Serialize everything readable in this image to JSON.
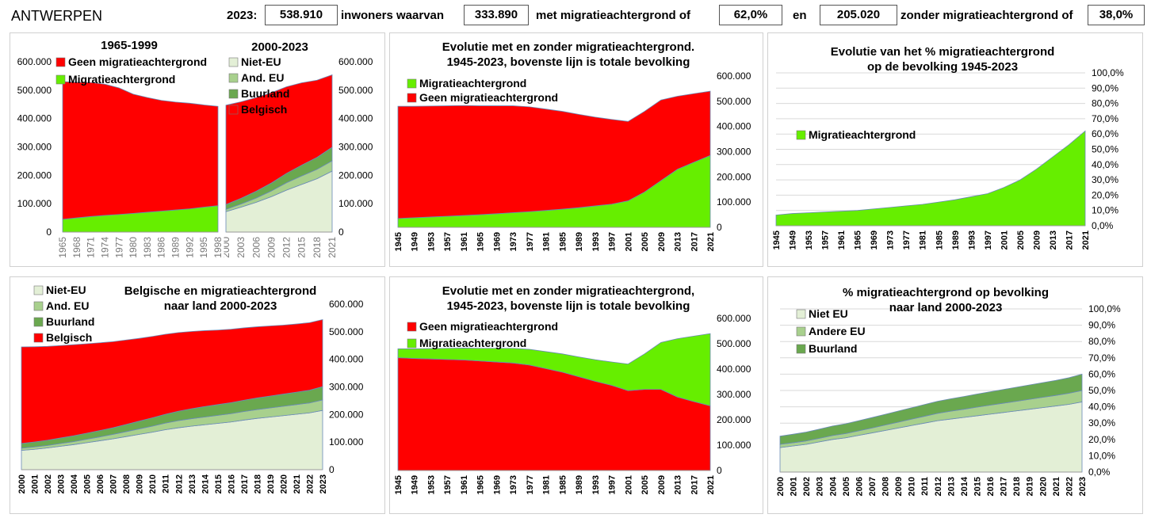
{
  "header": {
    "city": "ANTWERPEN",
    "year_label": "2023:",
    "total": "538.910",
    "inwoners_label": "inwoners  waarvan",
    "with_migration": "333.890",
    "with_label": "met migratieachtergrond of",
    "with_pct": "62,0%",
    "en_label": "en",
    "without_migration": "205.020",
    "without_label": "zonder migratieachtergrond of",
    "without_pct": "38,0%"
  },
  "colors": {
    "red": "#ff0000",
    "green": "#66ee00",
    "niet_eu": "#e3efd6",
    "and_eu": "#a8d08d",
    "buurland": "#6aa84f",
    "belgisch": "#ff0000"
  },
  "chart_data": [
    {
      "id": "c1a",
      "type": "area",
      "title": "1965-1999",
      "x": [
        "1965",
        "1968",
        "1971",
        "1974",
        "1977",
        "1980",
        "1983",
        "1986",
        "1989",
        "1992",
        "1995",
        "1998"
      ],
      "ylim": [
        0,
        600000
      ],
      "yticks": [
        "0",
        "100.000",
        "200.000",
        "300.000",
        "400.000",
        "500.000",
        "600.000"
      ],
      "series": [
        {
          "name": "Migratieachtergrond",
          "values": [
            45000,
            50000,
            55000,
            59000,
            62000,
            66000,
            70000,
            74000,
            78000,
            82000,
            88000,
            93000
          ]
        },
        {
          "name": "Geen migratieachtergrond",
          "values": [
            485000,
            478000,
            472000,
            462000,
            446000,
            420000,
            404000,
            390000,
            380000,
            372000,
            360000,
            350000
          ]
        }
      ]
    },
    {
      "id": "c1b",
      "type": "area",
      "title": "2000-2023",
      "x": [
        "2000",
        "2003",
        "2006",
        "2009",
        "2012",
        "2015",
        "2018",
        "2021"
      ],
      "ylim": [
        0,
        600000
      ],
      "yticks": [
        "0",
        "100.000",
        "200.000",
        "300.000",
        "400.000",
        "500.000",
        "600.000"
      ],
      "series": [
        {
          "name": "Niet-EU",
          "values": [
            72000,
            88000,
            105000,
            125000,
            148000,
            168000,
            188000,
            215000
          ]
        },
        {
          "name": "And. EU",
          "values": [
            8000,
            11000,
            15000,
            20000,
            26000,
            30000,
            33000,
            36000
          ]
        },
        {
          "name": "Buurland",
          "values": [
            17000,
            20000,
            24000,
            28000,
            33000,
            38000,
            42000,
            48000
          ]
        },
        {
          "name": "Belgisch",
          "values": [
            350000,
            340000,
            330000,
            318000,
            305000,
            290000,
            272000,
            255000
          ]
        }
      ]
    },
    {
      "id": "c2",
      "type": "area",
      "title": [
        "Evolutie met en zonder migratieachtergrond.",
        "1945-2023, bovenste lijn is totale  bevolking"
      ],
      "x": [
        "1945",
        "1949",
        "1953",
        "1957",
        "1961",
        "1965",
        "1969",
        "1973",
        "1977",
        "1981",
        "1985",
        "1989",
        "1993",
        "1997",
        "2001",
        "2005",
        "2009",
        "2013",
        "2017",
        "2021"
      ],
      "ylim": [
        0,
        600000
      ],
      "yticks": [
        "0",
        "100.000",
        "200.000",
        "300.000",
        "400.000",
        "500.000",
        "600.000"
      ],
      "series": [
        {
          "name": "Migratieachtergrond",
          "values": [
            35000,
            38000,
            41000,
            44000,
            47000,
            50000,
            54000,
            58000,
            62000,
            67000,
            72000,
            78000,
            85000,
            92000,
            105000,
            140000,
            185000,
            230000,
            258000,
            285000
          ]
        },
        {
          "name": "Geen migratieachtergrond",
          "values": [
            445000,
            442000,
            440000,
            438000,
            436000,
            432000,
            428000,
            424000,
            416000,
            402000,
            388000,
            370000,
            352000,
            336000,
            315000,
            320000,
            320000,
            290000,
            272000,
            255000
          ]
        }
      ]
    },
    {
      "id": "c3",
      "type": "area",
      "title": [
        "Evolutie van het % migratieachtergrond",
        "op de bevolking 1945-2023"
      ],
      "x": [
        "1945",
        "1949",
        "1953",
        "1957",
        "1961",
        "1965",
        "1969",
        "1973",
        "1977",
        "1981",
        "1985",
        "1989",
        "1993",
        "1997",
        "2001",
        "2005",
        "2009",
        "2013",
        "2017",
        "2021"
      ],
      "ylim": [
        0,
        100
      ],
      "yticks": [
        "0,0%",
        "10,0%",
        "20,0%",
        "30,0%",
        "40,0%",
        "50,0%",
        "60,0%",
        "70,0%",
        "80,0%",
        "90,0%",
        "100,0%"
      ],
      "series": [
        {
          "name": "Migratieachtergrond",
          "values": [
            7,
            8,
            8.5,
            9,
            9.5,
            10,
            11,
            12,
            13,
            14,
            15.5,
            17,
            19,
            21,
            25,
            30,
            37,
            45,
            53,
            62
          ]
        }
      ]
    },
    {
      "id": "c4",
      "type": "area",
      "title": [
        "Belgische en migratieachtergrond",
        "naar land  2000-2023"
      ],
      "x": [
        "2000",
        "2001",
        "2002",
        "2003",
        "2004",
        "2005",
        "2006",
        "2007",
        "2008",
        "2009",
        "2010",
        "2011",
        "2012",
        "2013",
        "2014",
        "2015",
        "2016",
        "2017",
        "2018",
        "2019",
        "2020",
        "2021",
        "2022",
        "2023"
      ],
      "ylim": [
        0,
        600000
      ],
      "yticks": [
        "0",
        "100.000",
        "200.000",
        "300.000",
        "400.000",
        "500.000",
        "600.000"
      ],
      "series": [
        {
          "name": "Niet-EU",
          "values": [
            70000,
            74000,
            79000,
            85000,
            91000,
            98000,
            105000,
            112000,
            120000,
            128000,
            136000,
            145000,
            152000,
            158000,
            163000,
            168000,
            173000,
            180000,
            186000,
            191000,
            196000,
            201000,
            206000,
            215000
          ]
        },
        {
          "name": "And. EU",
          "values": [
            8000,
            8500,
            9000,
            10000,
            11000,
            12500,
            14000,
            16000,
            18000,
            20000,
            22000,
            24000,
            26000,
            27000,
            28000,
            29000,
            30000,
            31000,
            32000,
            33000,
            34000,
            35000,
            36000,
            38000
          ]
        },
        {
          "name": "Buurland",
          "values": [
            17000,
            18000,
            19000,
            20000,
            21000,
            22000,
            23000,
            24000,
            26000,
            28000,
            30000,
            32000,
            34000,
            36000,
            38000,
            39000,
            40000,
            41000,
            42000,
            43000,
            44000,
            45000,
            46000,
            48000
          ]
        },
        {
          "name": "Belgisch",
          "values": [
            350000,
            345000,
            340000,
            335000,
            330000,
            324000,
            318000,
            312000,
            306000,
            300000,
            295000,
            290000,
            285000,
            280000,
            275000,
            270000,
            266000,
            262000,
            258000,
            254000,
            250000,
            247000,
            245000,
            243000
          ]
        }
      ]
    },
    {
      "id": "c5",
      "type": "area",
      "title": [
        "Evolutie met en zonder migratieachtergrond,",
        "1945-2023, bovenste lijn is totale bevolking"
      ],
      "x": [
        "1945",
        "1949",
        "1953",
        "1957",
        "1961",
        "1965",
        "1969",
        "1973",
        "1977",
        "1981",
        "1985",
        "1989",
        "1993",
        "1997",
        "2001",
        "2005",
        "2009",
        "2013",
        "2017",
        "2021"
      ],
      "ylim": [
        0,
        600000
      ],
      "yticks": [
        "0",
        "100.000",
        "200.000",
        "300.000",
        "400.000",
        "500.000",
        "600.000"
      ],
      "series": [
        {
          "name": "Geen migratieachtergrond",
          "values": [
            445000,
            442000,
            440000,
            438000,
            436000,
            432000,
            428000,
            424000,
            416000,
            402000,
            388000,
            370000,
            352000,
            336000,
            315000,
            320000,
            320000,
            290000,
            272000,
            255000
          ]
        },
        {
          "name": "Migratieachtergrond",
          "values": [
            35000,
            38000,
            41000,
            44000,
            47000,
            50000,
            54000,
            58000,
            62000,
            67000,
            72000,
            78000,
            85000,
            92000,
            105000,
            140000,
            185000,
            230000,
            258000,
            285000
          ]
        }
      ]
    },
    {
      "id": "c6",
      "type": "area",
      "title": [
        "% migratieachtergrond op bevolking",
        "naar land 2000-2023"
      ],
      "x": [
        "2000",
        "2001",
        "2002",
        "2003",
        "2004",
        "2005",
        "2006",
        "2007",
        "2008",
        "2009",
        "2010",
        "2011",
        "2012",
        "2013",
        "2014",
        "2015",
        "2016",
        "2017",
        "2018",
        "2019",
        "2020",
        "2021",
        "2022",
        "2023"
      ],
      "ylim": [
        0,
        100
      ],
      "yticks": [
        "0,0%",
        "10,0%",
        "20,0%",
        "30,0%",
        "40,0%",
        "50,0%",
        "60,0%",
        "70,0%",
        "80,0%",
        "90,0%",
        "100,0%"
      ],
      "series": [
        {
          "name": "Niet EU",
          "values": [
            15,
            16,
            17,
            18.5,
            20,
            21,
            22.5,
            24,
            25.5,
            27,
            28.5,
            30,
            31.5,
            32.5,
            33.5,
            34.5,
            35.5,
            36.5,
            37.5,
            38.5,
            39.5,
            40.5,
            41.5,
            43
          ]
        },
        {
          "name": "Andere EU",
          "values": [
            2,
            2,
            2.1,
            2.2,
            2.4,
            2.6,
            2.8,
            3,
            3.3,
            3.6,
            3.9,
            4.2,
            4.5,
            4.8,
            5,
            5.3,
            5.5,
            5.7,
            5.9,
            6.1,
            6.3,
            6.5,
            6.8,
            7
          ]
        },
        {
          "name": "Buurland",
          "values": [
            5,
            5.2,
            5.4,
            5.6,
            5.8,
            6,
            6.2,
            6.4,
            6.6,
            6.8,
            7,
            7.2,
            7.4,
            7.6,
            7.8,
            8,
            8.2,
            8.4,
            8.6,
            8.8,
            9,
            9.2,
            9.5,
            10
          ]
        }
      ]
    }
  ]
}
